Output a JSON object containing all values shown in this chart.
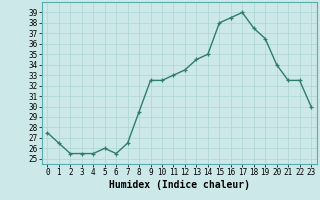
{
  "x": [
    0,
    1,
    2,
    3,
    4,
    5,
    6,
    7,
    8,
    9,
    10,
    11,
    12,
    13,
    14,
    15,
    16,
    17,
    18,
    19,
    20,
    21,
    22,
    23
  ],
  "y": [
    27.5,
    26.5,
    25.5,
    25.5,
    25.5,
    26.0,
    25.5,
    26.5,
    29.5,
    32.5,
    32.5,
    33.0,
    33.5,
    34.5,
    35.0,
    38.0,
    38.5,
    39.0,
    37.5,
    36.5,
    34.0,
    32.5,
    32.5,
    30.0
  ],
  "line_color": "#2e7d6e",
  "marker_color": "#2e7d6e",
  "bg_color": "#cde8e8",
  "grid_color": "#aad4d4",
  "xlabel": "Humidex (Indice chaleur)",
  "xlim": [
    -0.5,
    23.5
  ],
  "ylim": [
    24.5,
    40.0
  ],
  "yticks": [
    25,
    26,
    27,
    28,
    29,
    30,
    31,
    32,
    33,
    34,
    35,
    36,
    37,
    38,
    39
  ],
  "xticks": [
    0,
    1,
    2,
    3,
    4,
    5,
    6,
    7,
    8,
    9,
    10,
    11,
    12,
    13,
    14,
    15,
    16,
    17,
    18,
    19,
    20,
    21,
    22,
    23
  ],
  "xlabel_fontsize": 7,
  "tick_fontsize": 5.5,
  "line_width": 1.0,
  "marker_size": 3.5
}
